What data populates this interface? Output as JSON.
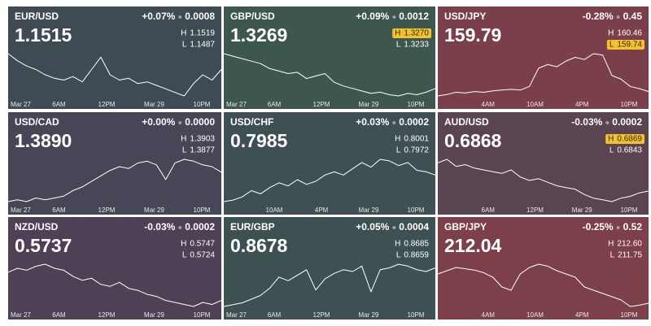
{
  "high_prefix": "H",
  "low_prefix": "L",
  "tiles": [
    {
      "pair": "EUR/USD",
      "change_pct": "+0.07%",
      "change": "0.0008",
      "price": "1.1515",
      "high": "1.1519",
      "low": "1.1487",
      "color": "#3e4b53",
      "highlight": null,
      "x_labels": [
        "Mar 27",
        "6AM",
        "12PM",
        "Mar 29",
        "10PM"
      ],
      "line": [
        1.1512,
        1.1508,
        1.1505,
        1.1503,
        1.15,
        1.1498,
        1.1497,
        1.1499,
        1.1496,
        1.1503,
        1.151,
        1.15,
        1.1497,
        1.1498,
        1.1495,
        1.1496,
        1.1494,
        1.1492,
        1.149,
        1.1488,
        1.1495,
        1.15,
        1.1497,
        1.1503
      ]
    },
    {
      "pair": "GBP/USD",
      "change_pct": "+0.09%",
      "change": "0.0012",
      "price": "1.3269",
      "high": "1.3270",
      "low": "1.3233",
      "color": "#3d5650",
      "highlight": "high",
      "x_labels": [
        "Mar 27",
        "6AM",
        "12PM",
        "Mar 29",
        "10PM"
      ],
      "line": [
        1.3268,
        1.3266,
        1.3264,
        1.3262,
        1.326,
        1.3256,
        1.3254,
        1.3252,
        1.3253,
        1.3248,
        1.325,
        1.3252,
        1.3245,
        1.3242,
        1.324,
        1.3238,
        1.3236,
        1.3237,
        1.3235,
        1.3234,
        1.3236,
        1.3235,
        1.3237,
        1.324
      ]
    },
    {
      "pair": "USD/JPY",
      "change_pct": "-0.28%",
      "change": "0.45",
      "price": "159.79",
      "high": "160.46",
      "low": "159.74",
      "color": "#7b3f4b",
      "highlight": "low",
      "x_labels": [
        "4AM",
        "10AM",
        "4PM",
        "10PM"
      ],
      "line": [
        159.82,
        159.84,
        159.87,
        159.86,
        159.88,
        159.87,
        159.89,
        159.9,
        159.91,
        159.9,
        159.95,
        160.2,
        160.25,
        160.22,
        160.3,
        160.35,
        160.32,
        160.4,
        160.38,
        160.1,
        160.05,
        159.95,
        159.92,
        159.88
      ]
    },
    {
      "pair": "USD/CAD",
      "change_pct": "+0.00%",
      "change": "0.0000",
      "price": "1.3890",
      "high": "1.3903",
      "low": "1.3877",
      "color": "#464656",
      "highlight": null,
      "x_labels": [
        "Mar 27",
        "6AM",
        "12PM",
        "Mar 29",
        "10PM"
      ],
      "line": [
        1.3878,
        1.3879,
        1.3878,
        1.388,
        1.3879,
        1.388,
        1.3881,
        1.3884,
        1.3886,
        1.3889,
        1.3892,
        1.3895,
        1.3897,
        1.3896,
        1.3899,
        1.39,
        1.3898,
        1.389,
        1.3899,
        1.3901,
        1.39,
        1.3898,
        1.3897,
        1.3894
      ]
    },
    {
      "pair": "USD/CHF",
      "change_pct": "+0.03%",
      "change": "0.0002",
      "price": "0.7985",
      "high": "0.8001",
      "low": "0.7972",
      "color": "#3e5053",
      "highlight": null,
      "x_labels": [
        "10AM",
        "4PM",
        "Mar 29",
        "10PM"
      ],
      "line": [
        0.7973,
        0.7974,
        0.7976,
        0.798,
        0.7978,
        0.7982,
        0.7985,
        0.7983,
        0.7987,
        0.7984,
        0.7986,
        0.799,
        0.7992,
        0.799,
        0.7994,
        0.7998,
        0.7995,
        0.8,
        0.7999,
        0.7996,
        0.7998,
        0.7993,
        0.7992,
        0.799
      ]
    },
    {
      "pair": "AUD/USD",
      "change_pct": "-0.03%",
      "change": "0.0002",
      "price": "0.6868",
      "high": "0.6869",
      "low": "0.6843",
      "color": "#5a4451",
      "highlight": "high",
      "x_labels": [
        "6AM",
        "12PM",
        "Mar 29",
        "10PM"
      ],
      "line": [
        0.6866,
        0.6868,
        0.6864,
        0.6865,
        0.6863,
        0.6862,
        0.6861,
        0.686,
        0.6862,
        0.6858,
        0.6856,
        0.6857,
        0.6855,
        0.6853,
        0.6852,
        0.6851,
        0.6848,
        0.6846,
        0.6845,
        0.6844,
        0.6846,
        0.6847,
        0.6849,
        0.685
      ]
    },
    {
      "pair": "NZD/USD",
      "change_pct": "-0.03%",
      "change": "0.0002",
      "price": "0.5737",
      "high": "0.5747",
      "low": "0.5724",
      "color": "#4e4155",
      "highlight": null,
      "x_labels": [
        "Mar 27",
        "6AM",
        "12PM",
        "Mar 29",
        "10PM"
      ],
      "line": [
        0.5742,
        0.5744,
        0.5743,
        0.5745,
        0.5746,
        0.5744,
        0.5743,
        0.574,
        0.5738,
        0.5739,
        0.5736,
        0.5735,
        0.5737,
        0.5734,
        0.5733,
        0.5731,
        0.573,
        0.5728,
        0.5727,
        0.5726,
        0.5725,
        0.5727,
        0.5726,
        0.5728
      ]
    },
    {
      "pair": "EUR/GBP",
      "change_pct": "+0.05%",
      "change": "0.0004",
      "price": "0.8678",
      "high": "0.8685",
      "low": "0.8659",
      "color": "#3e5152",
      "highlight": null,
      "x_labels": [
        "Mar 27",
        "6AM",
        "12PM",
        "Mar 29",
        "10PM"
      ],
      "line": [
        0.866,
        0.8661,
        0.8662,
        0.8664,
        0.8666,
        0.867,
        0.8676,
        0.8674,
        0.8677,
        0.868,
        0.8669,
        0.8675,
        0.8678,
        0.868,
        0.8679,
        0.8682,
        0.8668,
        0.868,
        0.8681,
        0.8683,
        0.8682,
        0.868,
        0.8679,
        0.8681
      ]
    },
    {
      "pair": "GBP/JPY",
      "change_pct": "-0.25%",
      "change": "0.52",
      "price": "212.04",
      "high": "212.60",
      "low": "211.75",
      "color": "#7d3f49",
      "highlight": null,
      "x_labels": [
        "4AM",
        "10AM",
        "4PM",
        "10PM"
      ],
      "line": [
        212.3,
        212.35,
        212.4,
        212.38,
        212.36,
        212.32,
        212.25,
        212.1,
        212.05,
        212.3,
        212.4,
        212.45,
        212.42,
        212.35,
        212.3,
        212.25,
        212.1,
        212.05,
        212.0,
        211.95,
        211.9,
        211.8,
        211.82,
        211.85
      ]
    }
  ]
}
